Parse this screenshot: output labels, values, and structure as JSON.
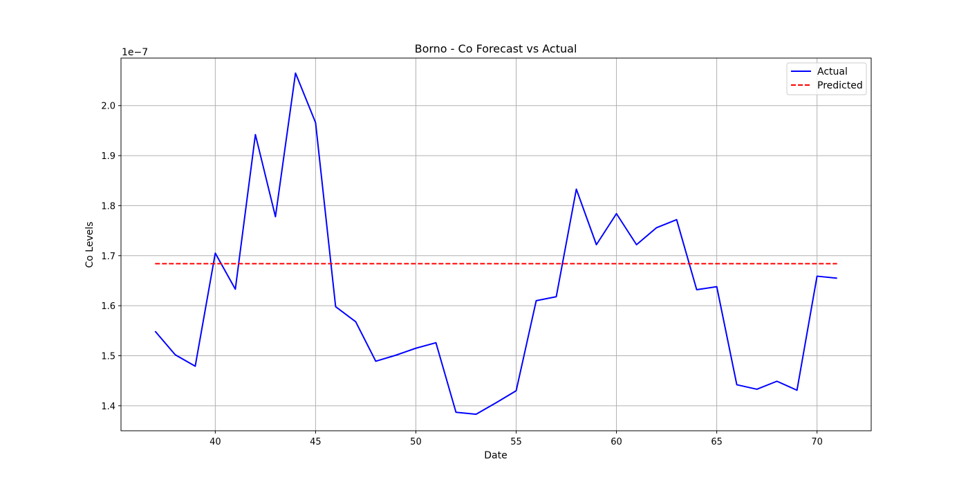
{
  "chart_data": {
    "type": "line",
    "title": "Borno - Co Forecast vs Actual",
    "xlabel": "Date",
    "ylabel": "Co Levels",
    "y_offset_label": "1e−7",
    "xlim": [
      35.3,
      72.7
    ],
    "ylim": [
      1.35,
      2.095
    ],
    "x_ticks": [
      40,
      45,
      50,
      55,
      60,
      65,
      70
    ],
    "y_ticks": [
      1.4,
      1.5,
      1.6,
      1.7,
      1.8,
      1.9,
      2.0
    ],
    "y_tick_labels": [
      "1.4",
      "1.5",
      "1.6",
      "1.7",
      "1.8",
      "1.9",
      "2.0"
    ],
    "grid": true,
    "legend_position": "upper right",
    "x": [
      37,
      38,
      39,
      40,
      41,
      42,
      43,
      44,
      45,
      46,
      47,
      48,
      49,
      50,
      51,
      52,
      53,
      54,
      55,
      56,
      57,
      58,
      59,
      60,
      61,
      62,
      63,
      64,
      65,
      66,
      67,
      68,
      69,
      70,
      71
    ],
    "series": [
      {
        "name": "Actual",
        "color": "#0000ff",
        "style": "solid",
        "values": [
          1.549,
          1.502,
          1.479,
          1.705,
          1.633,
          1.942,
          1.778,
          2.065,
          1.966,
          1.598,
          1.568,
          1.489,
          1.501,
          1.515,
          1.526,
          1.387,
          1.383,
          1.406,
          1.43,
          1.61,
          1.618,
          1.833,
          1.722,
          1.784,
          1.722,
          1.756,
          1.772,
          1.632,
          1.638,
          1.442,
          1.433,
          1.449,
          1.431,
          1.659,
          1.655
        ]
      },
      {
        "name": "Predicted",
        "color": "#ff0000",
        "style": "dashed",
        "values": [
          1.684,
          1.684,
          1.684,
          1.684,
          1.684,
          1.684,
          1.684,
          1.684,
          1.684,
          1.684,
          1.684,
          1.684,
          1.684,
          1.684,
          1.684,
          1.684,
          1.684,
          1.684,
          1.684,
          1.684,
          1.684,
          1.684,
          1.684,
          1.684,
          1.684,
          1.684,
          1.684,
          1.684,
          1.684,
          1.684,
          1.684,
          1.684,
          1.684,
          1.684,
          1.684
        ]
      }
    ]
  }
}
